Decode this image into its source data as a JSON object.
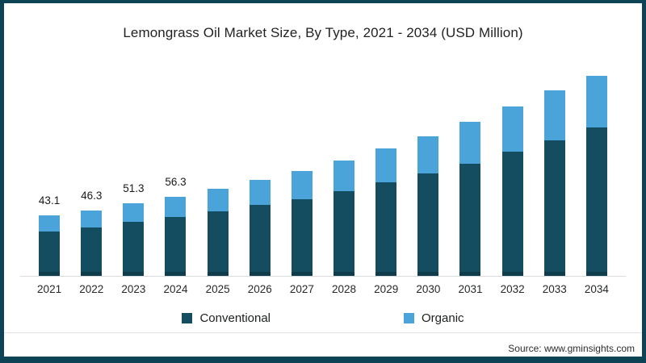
{
  "frame": {
    "border_color": "#0e4356"
  },
  "title": "Lemongrass Oil Market Size, By Type, 2021 - 2034 (USD Million)",
  "source": "Source: www.gminsights.com",
  "legend": [
    {
      "label": "Conventional",
      "color": "#144d5f"
    },
    {
      "label": "Organic",
      "color": "#4aa3d9"
    }
  ],
  "chart_data": {
    "type": "bar",
    "stacked": true,
    "title": "Lemongrass Oil Market Size, By Type, 2021 - 2034 (USD Million)",
    "unit": "USD Million",
    "xlabel": "",
    "ylabel": "",
    "ylim": [
      0,
      150
    ],
    "grid": false,
    "legend_position": "bottom",
    "categories": [
      "2021",
      "2022",
      "2023",
      "2024",
      "2025",
      "2026",
      "2027",
      "2028",
      "2029",
      "2030",
      "2031",
      "2032",
      "2033",
      "2034"
    ],
    "series": [
      {
        "name": "Conventional",
        "color": "#144d5f",
        "values": [
          31.4,
          34.3,
          38.3,
          41.7,
          45.7,
          50.3,
          54.3,
          60.0,
          66.3,
          72.5,
          79.4,
          88.0,
          95.9,
          105.1
        ]
      },
      {
        "name": "Organic",
        "color": "#4aa3d9",
        "values": [
          11.7,
          12.0,
          13.0,
          14.6,
          16.0,
          17.6,
          19.9,
          21.5,
          24.0,
          26.4,
          29.6,
          31.9,
          35.3,
          36.9
        ]
      }
    ],
    "totals": [
      43.1,
      46.3,
      51.3,
      56.3,
      61.7,
      67.9,
      74.2,
      81.5,
      90.3,
      98.9,
      109.0,
      119.9,
      131.2,
      142.0
    ],
    "data_labels": [
      "43.1",
      "46.3",
      "51.3",
      "56.3",
      "",
      "",
      "",
      "",
      "",
      "",
      "",
      "",
      "",
      ""
    ]
  }
}
